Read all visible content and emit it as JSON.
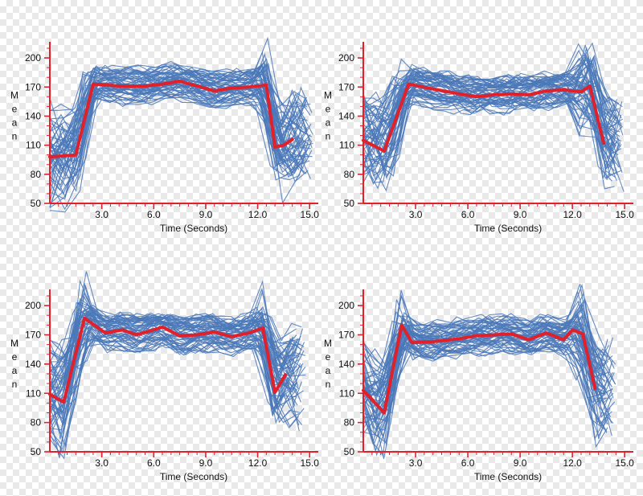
{
  "colors": {
    "background": "#ffffff",
    "trial_lines": "#4a78b8",
    "mean_line": "#e0202a",
    "axis": "#e0202a",
    "text": "#111111"
  },
  "chart_data": [
    {
      "type": "line",
      "panel": "top-left",
      "xlabel": "Time (Seconds)",
      "ylabel": "Mean",
      "xlim": [
        0,
        15.5
      ],
      "ylim": [
        50,
        210
      ],
      "xticks": [
        3.0,
        6.0,
        9.0,
        12.0,
        15.0
      ],
      "xtick_labels": [
        "3.0",
        "6.0",
        "9.0",
        "12.0",
        "15.0"
      ],
      "yticks": [
        50,
        80,
        110,
        140,
        170,
        200
      ],
      "ytick_labels": [
        "50",
        "80",
        "110",
        "140",
        "170",
        "200"
      ],
      "trial_count": 60,
      "mean_series": {
        "name": "Mean",
        "x": [
          0,
          1.5,
          2.5,
          4.0,
          5.5,
          6.5,
          7.5,
          8.5,
          9.5,
          10.5,
          11.5,
          12.5,
          13.0,
          13.5,
          14.0
        ],
        "y": [
          98,
          100,
          173,
          171,
          171,
          173,
          176,
          171,
          166,
          169,
          170,
          172,
          108,
          110,
          116
        ]
      }
    },
    {
      "type": "line",
      "panel": "top-right",
      "xlabel": "Time (Seconds)",
      "ylabel": "Mean",
      "xlim": [
        0,
        15.5
      ],
      "ylim": [
        50,
        210
      ],
      "xticks": [
        3.0,
        6.0,
        9.0,
        12.0,
        15.0
      ],
      "xtick_labels": [
        "3.0",
        "6.0",
        "9.0",
        "12.0",
        "15.0"
      ],
      "yticks": [
        50,
        80,
        110,
        140,
        170,
        200
      ],
      "ytick_labels": [
        "50",
        "80",
        "110",
        "140",
        "170",
        "200"
      ],
      "trial_count": 60,
      "mean_series": {
        "name": "Mean",
        "x": [
          0,
          1.2,
          2.6,
          4.0,
          5.5,
          6.5,
          7.5,
          8.5,
          9.5,
          10.5,
          11.5,
          12.5,
          13.0,
          13.8
        ],
        "y": [
          115,
          104,
          173,
          168,
          163,
          160,
          162,
          163,
          162,
          166,
          167,
          165,
          171,
          112
        ]
      }
    },
    {
      "type": "line",
      "panel": "bottom-left",
      "xlabel": "Time (Seconds)",
      "ylabel": "Mean",
      "xlim": [
        0,
        15.5
      ],
      "ylim": [
        50,
        210
      ],
      "xticks": [
        3.0,
        6.0,
        9.0,
        12.0,
        15.0
      ],
      "xtick_labels": [
        "3.0",
        "6.0",
        "9.0",
        "12.0",
        "15.0"
      ],
      "yticks": [
        50,
        80,
        110,
        140,
        170,
        200
      ],
      "ytick_labels": [
        "50",
        "80",
        "110",
        "140",
        "170",
        "200"
      ],
      "trial_count": 60,
      "mean_series": {
        "name": "Mean",
        "x": [
          0,
          0.8,
          2.0,
          3.2,
          4.2,
          5.0,
          5.8,
          6.5,
          7.5,
          8.5,
          9.5,
          10.5,
          11.5,
          12.3,
          13.0,
          13.6
        ],
        "y": [
          109,
          101,
          187,
          172,
          175,
          170,
          174,
          178,
          169,
          170,
          173,
          168,
          172,
          177,
          111,
          129
        ]
      }
    },
    {
      "type": "line",
      "panel": "bottom-right",
      "xlabel": "Time (Seconds)",
      "ylabel": "Mean",
      "xlim": [
        0,
        15.5
      ],
      "ylim": [
        50,
        210
      ],
      "xticks": [
        3.0,
        6.0,
        9.0,
        12.0,
        15.0
      ],
      "xtick_labels": [
        "3.0",
        "6.0",
        "9.0",
        "12.0",
        "15.0"
      ],
      "yticks": [
        50,
        80,
        110,
        140,
        170,
        200
      ],
      "ytick_labels": [
        "50",
        "80",
        "110",
        "140",
        "170",
        "200"
      ],
      "trial_count": 60,
      "mean_series": {
        "name": "Mean",
        "x": [
          0,
          1.2,
          2.2,
          2.8,
          4.0,
          5.5,
          6.5,
          7.5,
          8.5,
          9.5,
          10.5,
          11.5,
          12.0,
          12.6,
          13.3
        ],
        "y": [
          113,
          90,
          180,
          162,
          163,
          166,
          169,
          170,
          171,
          165,
          172,
          165,
          175,
          171,
          115
        ]
      }
    }
  ]
}
